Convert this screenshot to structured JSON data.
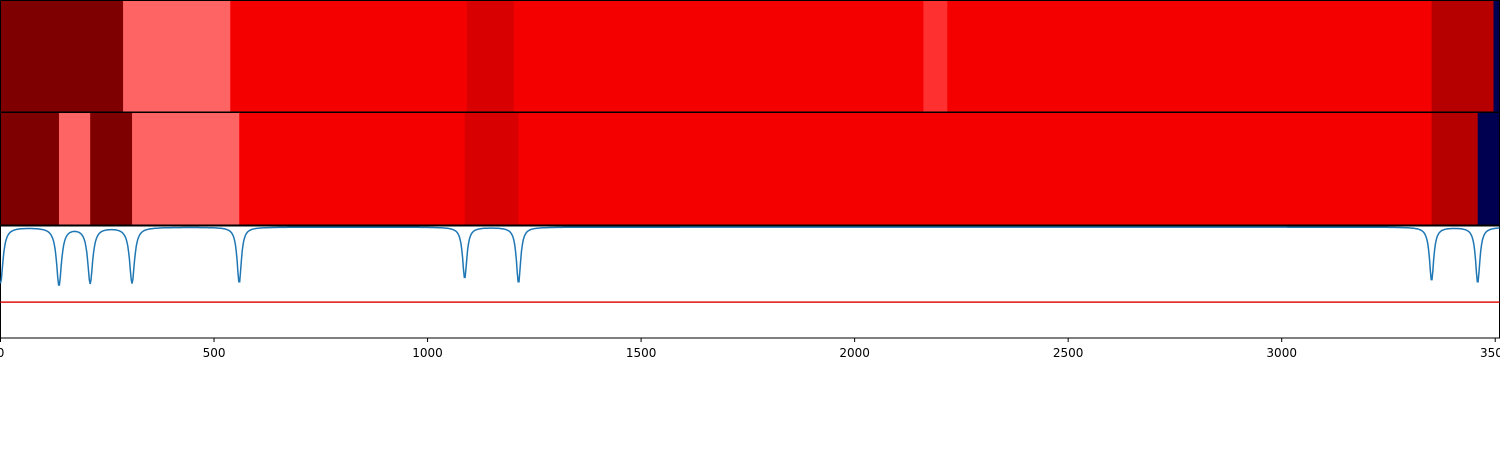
{
  "chart_data": {
    "type": "heatmap",
    "x_range": [
      0,
      3510
    ],
    "colors": {
      "level_0": "#7f0000",
      "level_1": "#ff6464",
      "level_2": "#f50000",
      "level_3": "#d80000",
      "level_4": "#ff3030",
      "level_5": "#b60000",
      "level_6": "#000050",
      "line": "#1f77b4",
      "threshold": "#e01010"
    },
    "rows": [
      {
        "segments": [
          {
            "start": 0,
            "end": 287,
            "color": "level_0"
          },
          {
            "start": 287,
            "end": 538,
            "color": "level_1"
          },
          {
            "start": 538,
            "end": 1092,
            "color": "level_2"
          },
          {
            "start": 1092,
            "end": 1202,
            "color": "level_3"
          },
          {
            "start": 1202,
            "end": 2161,
            "color": "level_2"
          },
          {
            "start": 2161,
            "end": 2217,
            "color": "level_4"
          },
          {
            "start": 2217,
            "end": 3351,
            "color": "level_2"
          },
          {
            "start": 3351,
            "end": 3496,
            "color": "level_5"
          },
          {
            "start": 3496,
            "end": 3510,
            "color": "level_6"
          }
        ]
      },
      {
        "segments": [
          {
            "start": 0,
            "end": 137,
            "color": "level_0"
          },
          {
            "start": 137,
            "end": 210,
            "color": "level_1"
          },
          {
            "start": 210,
            "end": 308,
            "color": "level_0"
          },
          {
            "start": 308,
            "end": 559,
            "color": "level_1"
          },
          {
            "start": 559,
            "end": 1087,
            "color": "level_2"
          },
          {
            "start": 1087,
            "end": 1213,
            "color": "level_3"
          },
          {
            "start": 1213,
            "end": 3351,
            "color": "level_2"
          },
          {
            "start": 3351,
            "end": 3459,
            "color": "level_5"
          },
          {
            "start": 3459,
            "end": 3510,
            "color": "level_6"
          }
        ]
      }
    ],
    "line_series": {
      "ylim": [
        0,
        1
      ],
      "baseline": 0.99,
      "threshold": 0.32,
      "dips": [
        {
          "x": 0,
          "depth": 0.5,
          "width": 7
        },
        {
          "x": 137,
          "depth": 0.52,
          "width": 7
        },
        {
          "x": 210,
          "depth": 0.5,
          "width": 7
        },
        {
          "x": 308,
          "depth": 0.5,
          "width": 7
        },
        {
          "x": 559,
          "depth": 0.5,
          "width": 6
        },
        {
          "x": 1087,
          "depth": 0.46,
          "width": 6
        },
        {
          "x": 1213,
          "depth": 0.5,
          "width": 6
        },
        {
          "x": 3351,
          "depth": 0.48,
          "width": 6
        },
        {
          "x": 3459,
          "depth": 0.5,
          "width": 6
        }
      ]
    },
    "x_ticks": [
      {
        "value": 0,
        "label": "0"
      },
      {
        "value": 500,
        "label": "500"
      },
      {
        "value": 1000,
        "label": "1000"
      },
      {
        "value": 1500,
        "label": "1500"
      },
      {
        "value": 2000,
        "label": "2000"
      },
      {
        "value": 2500,
        "label": "2500"
      },
      {
        "value": 3000,
        "label": "3000"
      },
      {
        "value": 3500,
        "label": "3500"
      }
    ]
  }
}
